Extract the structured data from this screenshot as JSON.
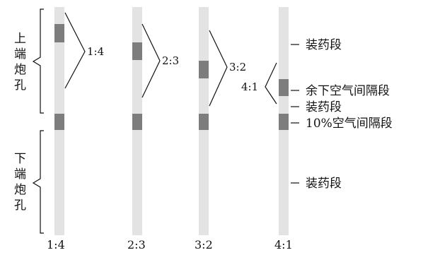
{
  "upper_hole": {
    "chars": [
      "上",
      "端",
      "炮",
      "孔"
    ]
  },
  "lower_hole": {
    "chars": [
      "下",
      "端",
      "炮",
      "孔"
    ]
  },
  "columns": [
    {
      "ratio": "1:4",
      "bottom_label": "1:4"
    },
    {
      "ratio": "2:3",
      "bottom_label": "2:3"
    },
    {
      "ratio": "3:2",
      "bottom_label": "3:2"
    },
    {
      "ratio": "4:1",
      "bottom_label": "4:1"
    }
  ],
  "labels": {
    "charge_top": "装药段",
    "remaining_air": "余下空气间隔段",
    "charge_mid": "装药段",
    "air_10": "10%空气间隔段",
    "charge_bottom": "装药段"
  },
  "colors": {
    "tube": "#e3e3e3",
    "segment": "#7d7d7d",
    "line": "#111111"
  }
}
